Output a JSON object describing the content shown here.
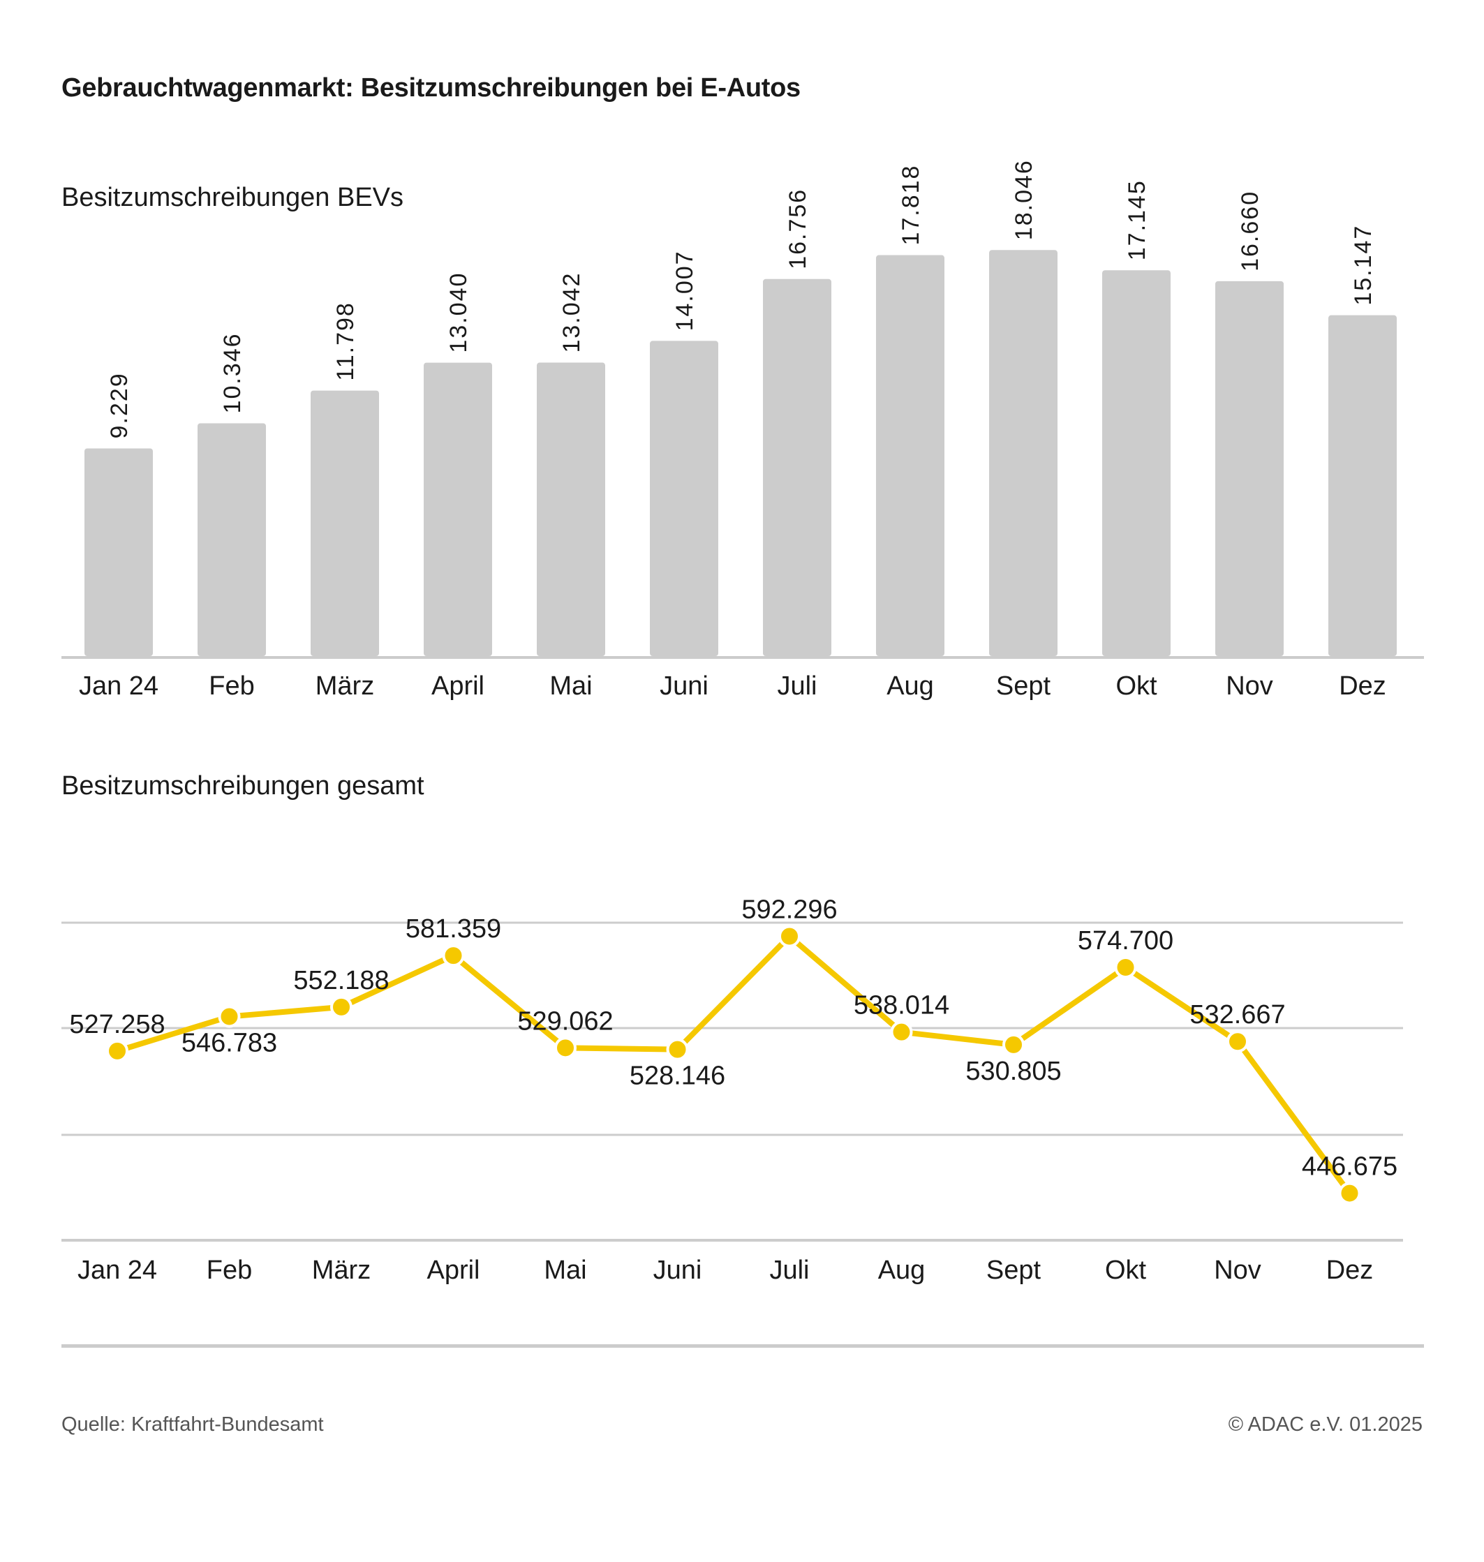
{
  "title": "Gebrauchtwagenmarkt: Besitzumschreibungen bei E-Autos",
  "footer": {
    "source": "Quelle: Kraftfahrt-Bundesamt",
    "copyright": "© ADAC e.V. 01.2025"
  },
  "colors": {
    "bar": "#cccccc",
    "line": "#f5c800",
    "grid": "#cccccc",
    "text": "#1a1a1a"
  },
  "chart_data": [
    {
      "type": "bar",
      "title": "Besitzumschreibungen BEVs",
      "xlabel": "",
      "ylabel": "",
      "categories": [
        "Jan 24",
        "Feb",
        "März",
        "April",
        "Mai",
        "Juni",
        "Juli",
        "Aug",
        "Sept",
        "Okt",
        "Nov",
        "Dez"
      ],
      "values": [
        9229,
        10346,
        11798,
        13040,
        13042,
        14007,
        16756,
        17818,
        18046,
        17145,
        16660,
        15147
      ],
      "data_labels": [
        "9.229",
        "10.346",
        "11.798",
        "13.040",
        "13.042",
        "14.007",
        "16.756",
        "17.818",
        "18.046",
        "17.145",
        "16.660",
        "15.147"
      ],
      "ylim": [
        0,
        20000
      ],
      "grid": false,
      "legend": "none"
    },
    {
      "type": "line",
      "title": "Besitzumschreibungen gesamt",
      "xlabel": "",
      "ylabel": "",
      "categories": [
        "Jan 24",
        "Feb",
        "März",
        "April",
        "Mai",
        "Juni",
        "Juli",
        "Aug",
        "Sept",
        "Okt",
        "Nov",
        "Dez"
      ],
      "values": [
        527258,
        546783,
        552188,
        581359,
        529062,
        528146,
        592296,
        538014,
        530805,
        574700,
        532667,
        446675
      ],
      "data_labels": [
        "527.258",
        "546.783",
        "552.188",
        "581.359",
        "529.062",
        "528.146",
        "592.296",
        "538.014",
        "530.805",
        "574.700",
        "532.667",
        "446.675"
      ],
      "label_positions": [
        "above",
        "below",
        "above",
        "above",
        "above",
        "below",
        "above",
        "above",
        "below",
        "above",
        "above",
        "above"
      ],
      "ylim": [
        420000,
        600000
      ],
      "grid": true,
      "legend": "none"
    }
  ]
}
